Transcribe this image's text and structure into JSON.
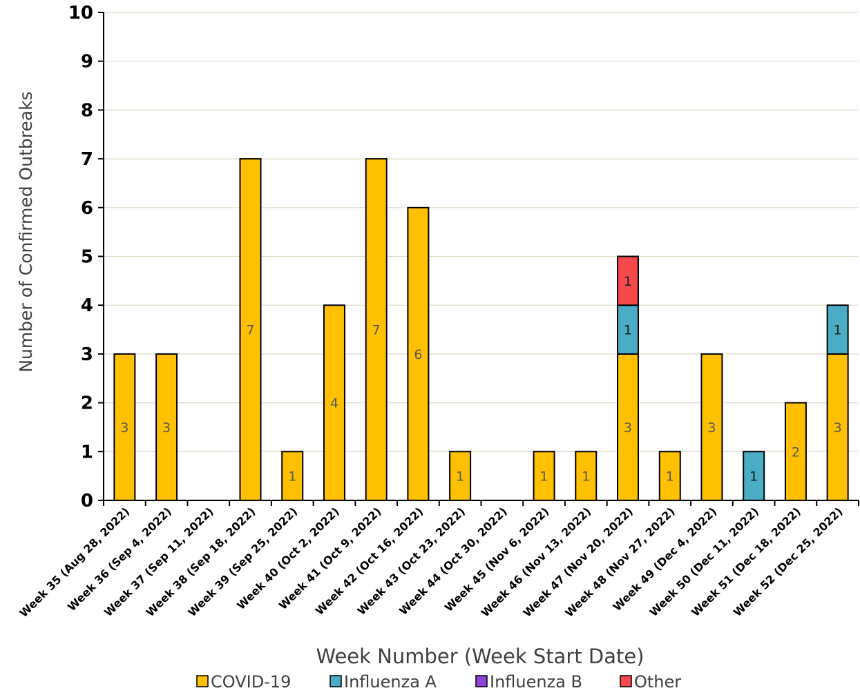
{
  "chart_data": {
    "type": "bar",
    "stacked": true,
    "title": "",
    "xlabel": "Week Number (Week Start Date)",
    "ylabel": "Number of Confirmed Outbreaks",
    "ylim": [
      0,
      10
    ],
    "yticks": [
      "0",
      "1",
      "2",
      "3",
      "4",
      "5",
      "6",
      "7",
      "8",
      "9",
      "10"
    ],
    "grid": true,
    "legend_position": "bottom",
    "categories": [
      "Week 35 (Aug 28, 2022)",
      "Week 36 (Sep 4, 2022)",
      "Week 37 (Sep 11, 2022)",
      "Week 38 (Sep 18, 2022)",
      "Week 39 (Sep 25, 2022)",
      "Week 40 (Oct 2, 2022)",
      "Week 41 (Oct 9, 2022)",
      "Week 42 (Oct 16, 2022)",
      "Week 43 (Oct 23, 2022)",
      "Week 44 (Oct 30, 2022)",
      "Week 45 (Nov 6, 2022)",
      "Week 46 (Nov 13, 2022)",
      "Week 47 (Nov 20, 2022)",
      "Week 48 (Nov 27, 2022)",
      "Week 49 (Dec 4, 2022)",
      "Week 50 (Dec 11, 2022)",
      "Week 51 (Dec 18, 2022)",
      "Week 52 (Dec 25, 2022)"
    ],
    "series": [
      {
        "name": "COVID-19",
        "color": "#FFC000",
        "values": [
          3,
          3,
          0,
          7,
          1,
          4,
          7,
          6,
          1,
          0,
          1,
          1,
          3,
          1,
          3,
          0,
          2,
          3
        ]
      },
      {
        "name": "Influenza A",
        "color": "#4BACC6",
        "values": [
          0,
          0,
          0,
          0,
          0,
          0,
          0,
          0,
          0,
          0,
          0,
          0,
          1,
          0,
          0,
          1,
          0,
          1
        ]
      },
      {
        "name": "Influenza B",
        "color": "#8E44DB",
        "values": [
          0,
          0,
          0,
          0,
          0,
          0,
          0,
          0,
          0,
          0,
          0,
          0,
          0,
          0,
          0,
          0,
          0,
          0
        ]
      },
      {
        "name": "Other",
        "color": "#F5494E",
        "values": [
          0,
          0,
          0,
          0,
          0,
          0,
          0,
          0,
          0,
          0,
          0,
          0,
          1,
          0,
          0,
          0,
          0,
          0
        ]
      }
    ]
  }
}
